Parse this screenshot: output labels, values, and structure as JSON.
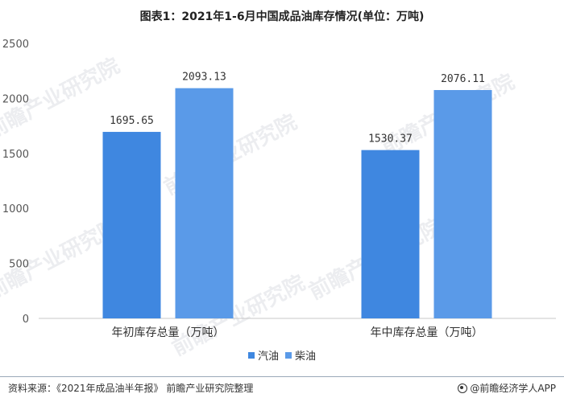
{
  "chart_data": {
    "type": "bar",
    "title": "图表1：2021年1-6月中国成品油库存情况(单位：万吨)",
    "categories": [
      "年初库存总量（万吨）",
      "年中库存总量（万吨）"
    ],
    "series": [
      {
        "name": "汽油",
        "values": [
          1695.65,
          1530.37
        ],
        "color": "#3f87e0"
      },
      {
        "name": "柴油",
        "values": [
          2093.13,
          2076.11
        ],
        "color": "#5a9ae8"
      }
    ],
    "ylim": [
      0,
      2500
    ],
    "yticks": [
      0,
      500,
      1000,
      1500,
      2000,
      2500
    ],
    "grid": false,
    "legend": "bottom"
  },
  "footer": {
    "source": "资料来源：《2021年成品油半年报》 前瞻产业研究院整理",
    "brand": "@前瞻经济学人APP"
  },
  "watermark": "前瞻产业研究院"
}
